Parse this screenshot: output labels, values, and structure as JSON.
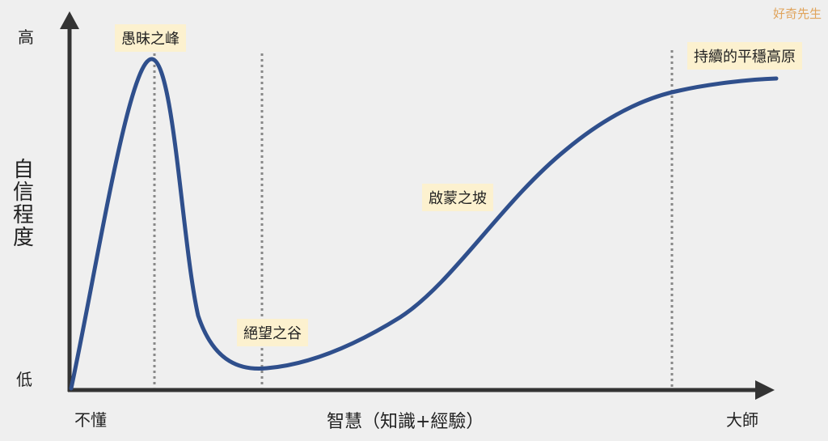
{
  "watermark": "好奇先生",
  "y_axis": {
    "label": "自信程度",
    "high": "高",
    "low": "低"
  },
  "x_axis": {
    "label": "智慧（知識+經驗）",
    "start": "不懂",
    "end": "大師"
  },
  "stages": [
    {
      "label": "愚昧之峰"
    },
    {
      "label": "絕望之谷"
    },
    {
      "label": "啟蒙之坡"
    },
    {
      "label": "持續的平穩高原"
    }
  ],
  "colors": {
    "curve": "#2f4f8c",
    "axis": "#333333",
    "label_bg": "#fcf1cf",
    "watermark": "#e0a45c",
    "divider": "#888888"
  }
}
